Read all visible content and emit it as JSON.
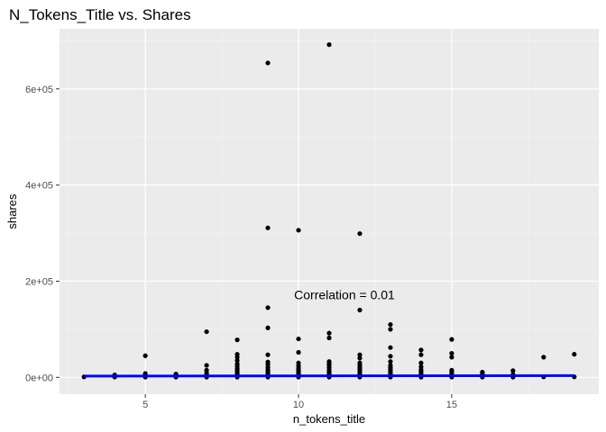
{
  "chart_data": {
    "type": "scatter",
    "title": "N_Tokens_Title  vs. Shares",
    "xlabel": "n_tokens_title",
    "ylabel": "shares",
    "xlim": [
      2.2,
      19.8
    ],
    "ylim": [
      -35000,
      725000
    ],
    "x_ticks": [
      5,
      10,
      15
    ],
    "x_tick_labels": [
      "5",
      "10",
      "15"
    ],
    "y_ticks": [
      0,
      200000,
      400000,
      600000
    ],
    "y_tick_labels": [
      "0e+00",
      "2e+05",
      "4e+05",
      "6e+05"
    ],
    "grid": true,
    "annotation": {
      "text": "Correlation = 0.01",
      "x": 11.5,
      "y": 172000
    },
    "trend_line": {
      "color": "#0000ff",
      "x": [
        3,
        19
      ],
      "y": [
        2600,
        3500
      ]
    },
    "points": [
      {
        "x": 3,
        "y": 1000
      },
      {
        "x": 4,
        "y": 800
      },
      {
        "x": 4,
        "y": 1500
      },
      {
        "x": 4,
        "y": 3000
      },
      {
        "x": 4,
        "y": 5000
      },
      {
        "x": 5,
        "y": 500
      },
      {
        "x": 5,
        "y": 1500
      },
      {
        "x": 5,
        "y": 3000
      },
      {
        "x": 5,
        "y": 5000
      },
      {
        "x": 5,
        "y": 8000
      },
      {
        "x": 5,
        "y": 45000
      },
      {
        "x": 6,
        "y": 500
      },
      {
        "x": 6,
        "y": 1500
      },
      {
        "x": 6,
        "y": 3000
      },
      {
        "x": 6,
        "y": 5000
      },
      {
        "x": 6,
        "y": 7000
      },
      {
        "x": 7,
        "y": 500
      },
      {
        "x": 7,
        "y": 2000
      },
      {
        "x": 7,
        "y": 5000
      },
      {
        "x": 7,
        "y": 9000
      },
      {
        "x": 7,
        "y": 15000
      },
      {
        "x": 7,
        "y": 25000
      },
      {
        "x": 7,
        "y": 95000
      },
      {
        "x": 8,
        "y": 500
      },
      {
        "x": 8,
        "y": 2000
      },
      {
        "x": 8,
        "y": 4000
      },
      {
        "x": 8,
        "y": 7000
      },
      {
        "x": 8,
        "y": 10000
      },
      {
        "x": 8,
        "y": 14000
      },
      {
        "x": 8,
        "y": 18000
      },
      {
        "x": 8,
        "y": 23000
      },
      {
        "x": 8,
        "y": 28000
      },
      {
        "x": 8,
        "y": 35000
      },
      {
        "x": 8,
        "y": 42000
      },
      {
        "x": 8,
        "y": 48000
      },
      {
        "x": 8,
        "y": 78000
      },
      {
        "x": 9,
        "y": 500
      },
      {
        "x": 9,
        "y": 2500
      },
      {
        "x": 9,
        "y": 5000
      },
      {
        "x": 9,
        "y": 8000
      },
      {
        "x": 9,
        "y": 12000
      },
      {
        "x": 9,
        "y": 16000
      },
      {
        "x": 9,
        "y": 21000
      },
      {
        "x": 9,
        "y": 27000
      },
      {
        "x": 9,
        "y": 32000
      },
      {
        "x": 9,
        "y": 47000
      },
      {
        "x": 9,
        "y": 103000
      },
      {
        "x": 9,
        "y": 145000
      },
      {
        "x": 9,
        "y": 311000
      },
      {
        "x": 9,
        "y": 654000
      },
      {
        "x": 10,
        "y": 500
      },
      {
        "x": 10,
        "y": 2500
      },
      {
        "x": 10,
        "y": 5000
      },
      {
        "x": 10,
        "y": 8000
      },
      {
        "x": 10,
        "y": 11000
      },
      {
        "x": 10,
        "y": 15000
      },
      {
        "x": 10,
        "y": 19000
      },
      {
        "x": 10,
        "y": 24000
      },
      {
        "x": 10,
        "y": 30000
      },
      {
        "x": 10,
        "y": 52000
      },
      {
        "x": 10,
        "y": 80000
      },
      {
        "x": 10,
        "y": 306000
      },
      {
        "x": 11,
        "y": 500
      },
      {
        "x": 11,
        "y": 2500
      },
      {
        "x": 11,
        "y": 5000
      },
      {
        "x": 11,
        "y": 8000
      },
      {
        "x": 11,
        "y": 11000
      },
      {
        "x": 11,
        "y": 15000
      },
      {
        "x": 11,
        "y": 20000
      },
      {
        "x": 11,
        "y": 25000
      },
      {
        "x": 11,
        "y": 29000
      },
      {
        "x": 11,
        "y": 33000
      },
      {
        "x": 11,
        "y": 82000
      },
      {
        "x": 11,
        "y": 92000
      },
      {
        "x": 11,
        "y": 692000
      },
      {
        "x": 12,
        "y": 500
      },
      {
        "x": 12,
        "y": 2500
      },
      {
        "x": 12,
        "y": 5000
      },
      {
        "x": 12,
        "y": 8000
      },
      {
        "x": 12,
        "y": 12000
      },
      {
        "x": 12,
        "y": 16000
      },
      {
        "x": 12,
        "y": 20000
      },
      {
        "x": 12,
        "y": 25000
      },
      {
        "x": 12,
        "y": 30000
      },
      {
        "x": 12,
        "y": 40000
      },
      {
        "x": 12,
        "y": 47000
      },
      {
        "x": 12,
        "y": 140000
      },
      {
        "x": 12,
        "y": 299000
      },
      {
        "x": 13,
        "y": 500
      },
      {
        "x": 13,
        "y": 2500
      },
      {
        "x": 13,
        "y": 5000
      },
      {
        "x": 13,
        "y": 8000
      },
      {
        "x": 13,
        "y": 12000
      },
      {
        "x": 13,
        "y": 16000
      },
      {
        "x": 13,
        "y": 20000
      },
      {
        "x": 13,
        "y": 25000
      },
      {
        "x": 13,
        "y": 33000
      },
      {
        "x": 13,
        "y": 44000
      },
      {
        "x": 13,
        "y": 62000
      },
      {
        "x": 13,
        "y": 100000
      },
      {
        "x": 13,
        "y": 110000
      },
      {
        "x": 14,
        "y": 500
      },
      {
        "x": 14,
        "y": 2500
      },
      {
        "x": 14,
        "y": 5000
      },
      {
        "x": 14,
        "y": 8000
      },
      {
        "x": 14,
        "y": 12000
      },
      {
        "x": 14,
        "y": 16000
      },
      {
        "x": 14,
        "y": 22000
      },
      {
        "x": 14,
        "y": 30000
      },
      {
        "x": 14,
        "y": 47000
      },
      {
        "x": 14,
        "y": 57000
      },
      {
        "x": 15,
        "y": 500
      },
      {
        "x": 15,
        "y": 2500
      },
      {
        "x": 15,
        "y": 5000
      },
      {
        "x": 15,
        "y": 8000
      },
      {
        "x": 15,
        "y": 11000
      },
      {
        "x": 15,
        "y": 15000
      },
      {
        "x": 15,
        "y": 42000
      },
      {
        "x": 15,
        "y": 50000
      },
      {
        "x": 15,
        "y": 79000
      },
      {
        "x": 16,
        "y": 500
      },
      {
        "x": 16,
        "y": 2500
      },
      {
        "x": 16,
        "y": 5000
      },
      {
        "x": 16,
        "y": 8000
      },
      {
        "x": 16,
        "y": 11000
      },
      {
        "x": 17,
        "y": 500
      },
      {
        "x": 17,
        "y": 2500
      },
      {
        "x": 17,
        "y": 6000
      },
      {
        "x": 17,
        "y": 14000
      },
      {
        "x": 18,
        "y": 1000
      },
      {
        "x": 18,
        "y": 42000
      },
      {
        "x": 19,
        "y": 1000
      },
      {
        "x": 19,
        "y": 48000
      }
    ]
  }
}
